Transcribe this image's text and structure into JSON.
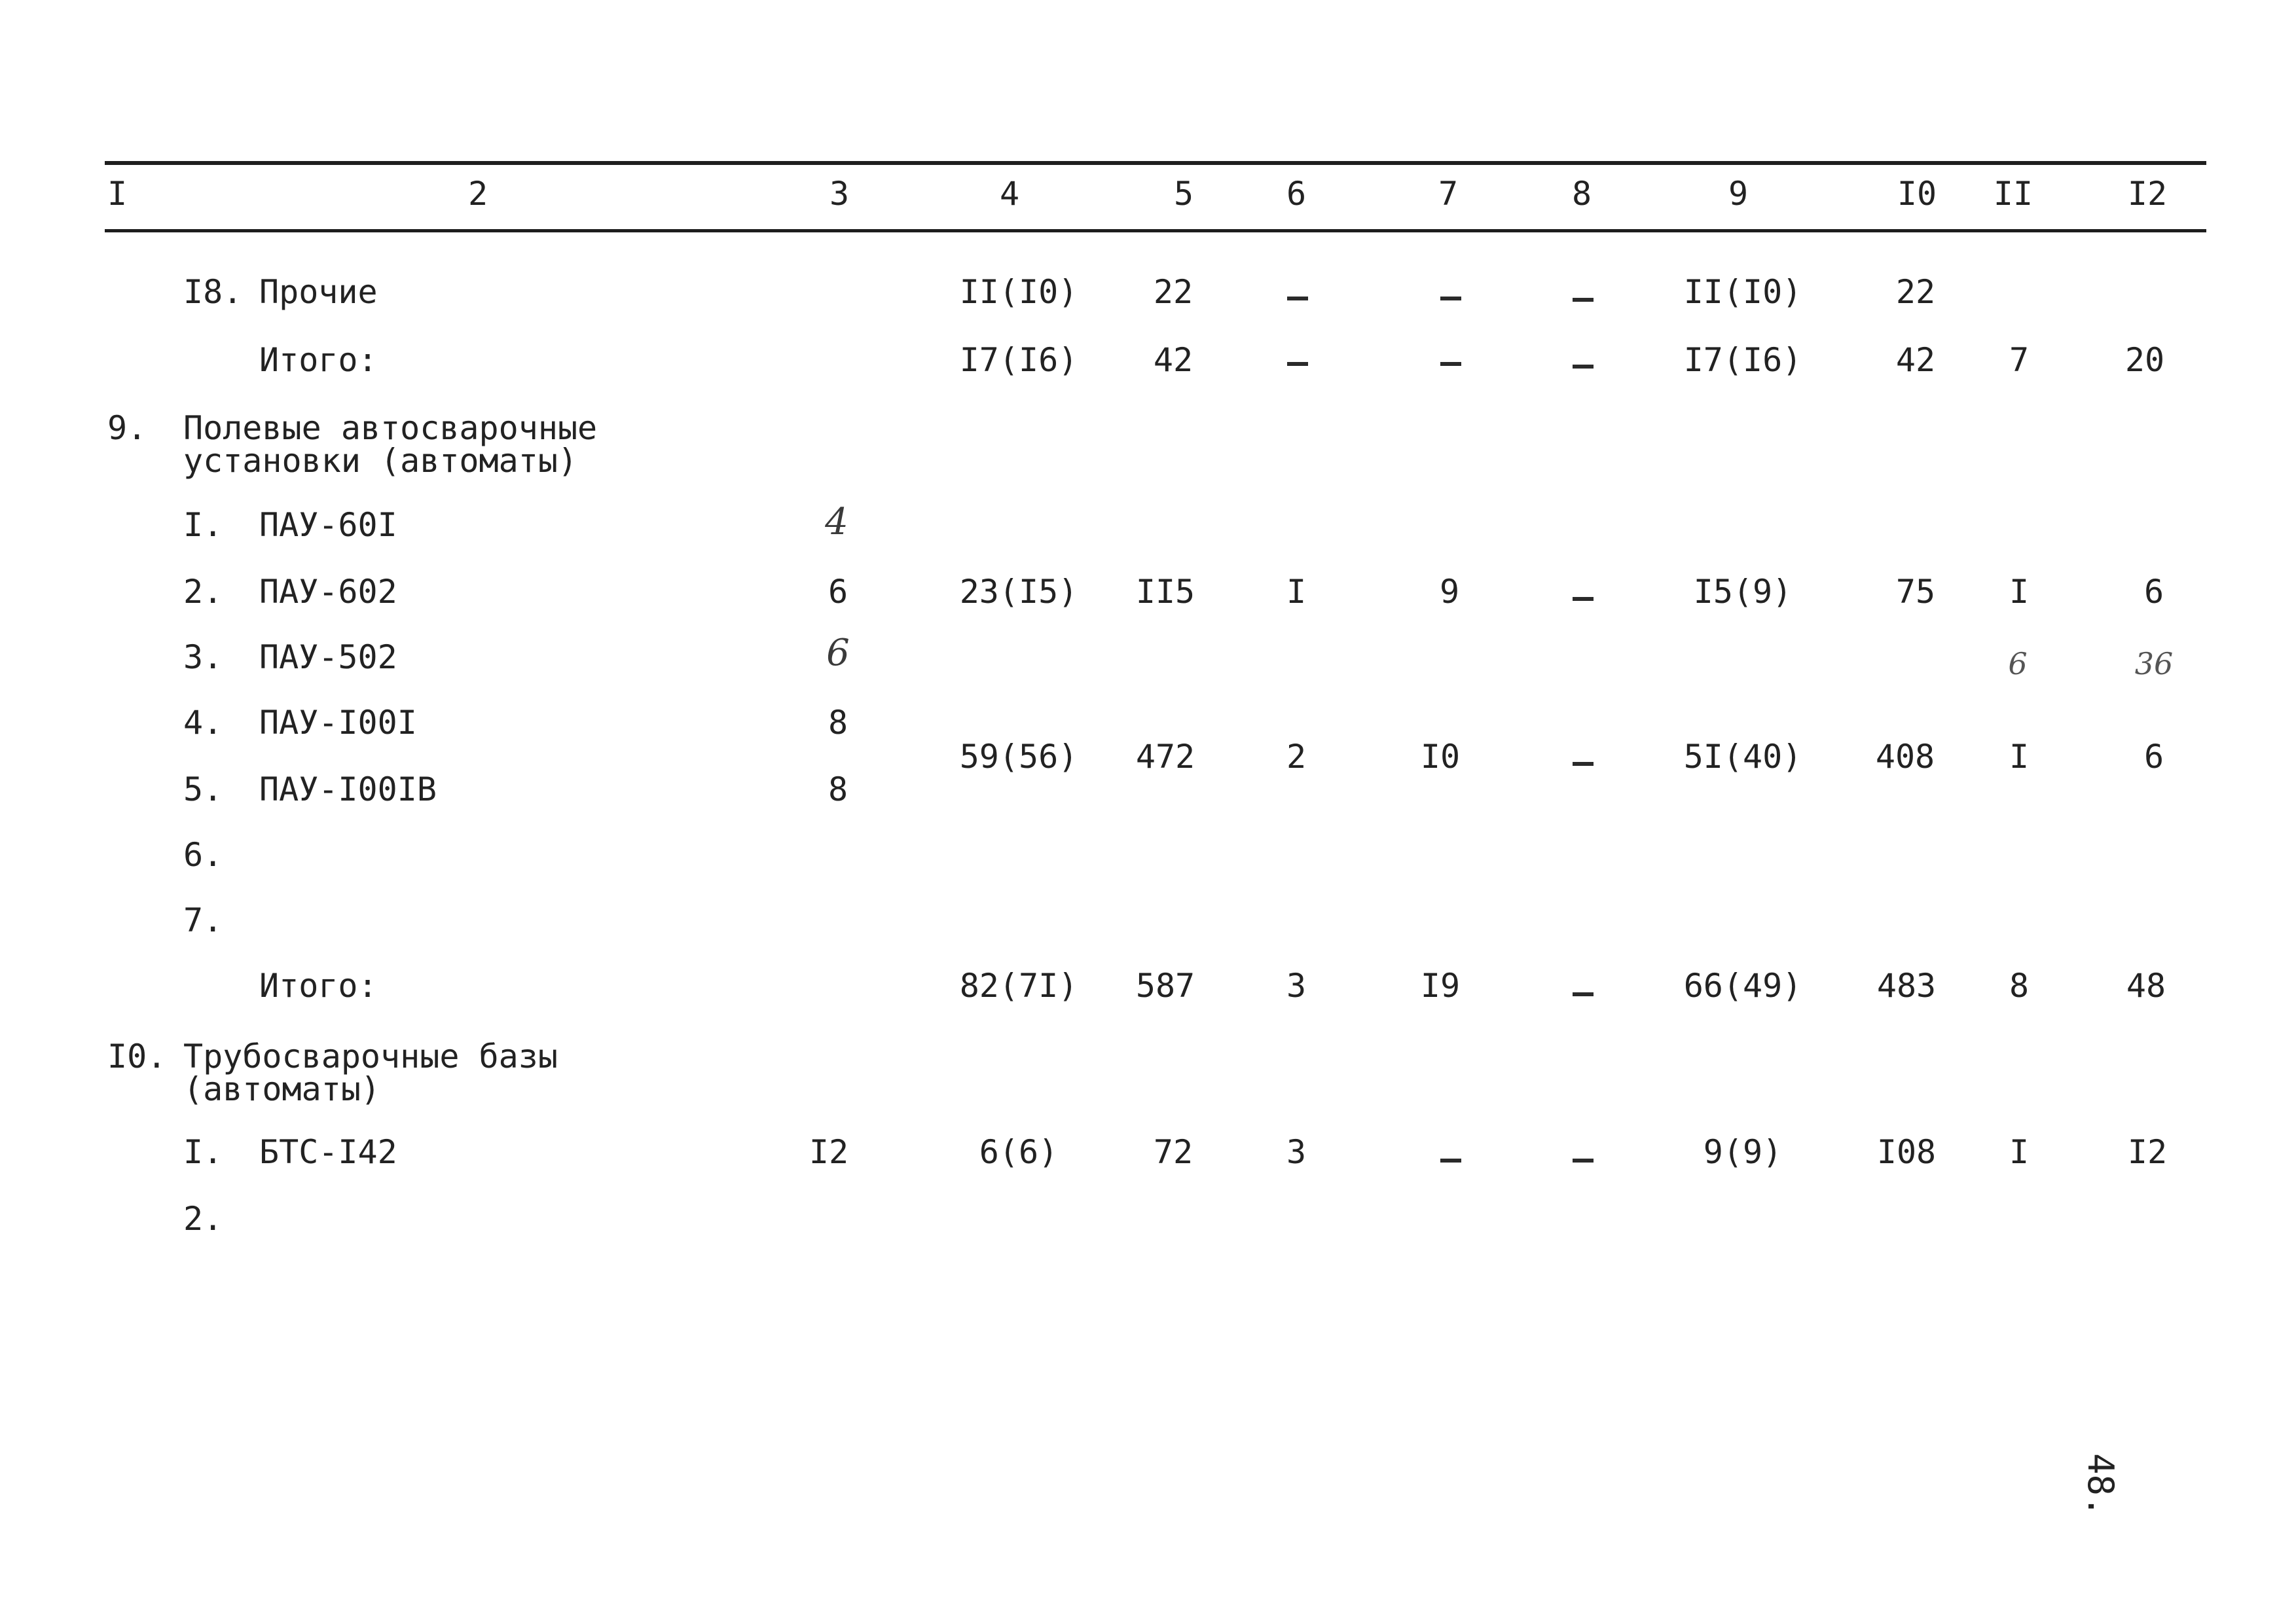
{
  "columns": [
    "I",
    "2",
    "3",
    "4",
    "5",
    "6",
    "7",
    "8",
    "9",
    "I0",
    "II",
    "I2"
  ],
  "rows": {
    "r18": {
      "num": "I8.",
      "name": "Прочие",
      "c4": "II(I0)",
      "c5": "22",
      "c6": "–",
      "c7": "–",
      "c8": "–",
      "c9": "II(I0)",
      "c10": "22"
    },
    "itogo1": {
      "name": "Итого:",
      "c4": "I7(I6)",
      "c5": "42",
      "c6": "–",
      "c7": "–",
      "c8": "–",
      "c9": "I7(I6)",
      "c10": "42",
      "c11": "7",
      "c12": "20"
    },
    "sec9": {
      "num": "9.",
      "line1": "Полевые автосварочные",
      "line2": "установки (автоматы)"
    },
    "p1": {
      "num": "I.",
      "name": "ПАУ-60I",
      "c3": "4"
    },
    "p2": {
      "num": "2.",
      "name": "ПАУ-602",
      "c3": "6",
      "c4": "23(I5)",
      "c5": "II5",
      "c6": "I",
      "c7": "9",
      "c8": "–",
      "c9": "I5(9)",
      "c10": "75",
      "c11": "I",
      "c12": "6"
    },
    "p3": {
      "num": "3.",
      "name": "ПАУ-502",
      "c3": "6",
      "c11": "6",
      "c12": "36"
    },
    "p4": {
      "num": "4.",
      "name": "ПАУ-I00I",
      "c3": "8"
    },
    "p45": {
      "c4": "59(56)",
      "c5": "472",
      "c6": "2",
      "c7": "I0",
      "c8": "–",
      "c9": "5I(40)",
      "c10": "408",
      "c11": "I",
      "c12": "6"
    },
    "p5": {
      "num": "5.",
      "name": "ПАУ-I00IВ",
      "c3": "8"
    },
    "p6": {
      "num": "6."
    },
    "p7": {
      "num": "7."
    },
    "itogo2": {
      "name": "Итого:",
      "c4": "82(7I)",
      "c5": "587",
      "c6": "3",
      "c7": "I9",
      "c8": "–",
      "c9": "66(49)",
      "c10": "483",
      "c11": "8",
      "c12": "48"
    },
    "sec10": {
      "num": "I0.",
      "line1": "Трубосварочные базы",
      "line2": "(автоматы)"
    },
    "b1": {
      "num": "I.",
      "name": "БТС-I42",
      "c3": "I2",
      "c4": "6(6)",
      "c5": "72",
      "c6": "3",
      "c7": "–",
      "c8": "–",
      "c9": "9(9)",
      "c10": "I08",
      "c11": "I",
      "c12": "I2"
    },
    "b2": {
      "num": "2."
    }
  },
  "page_number": "48."
}
